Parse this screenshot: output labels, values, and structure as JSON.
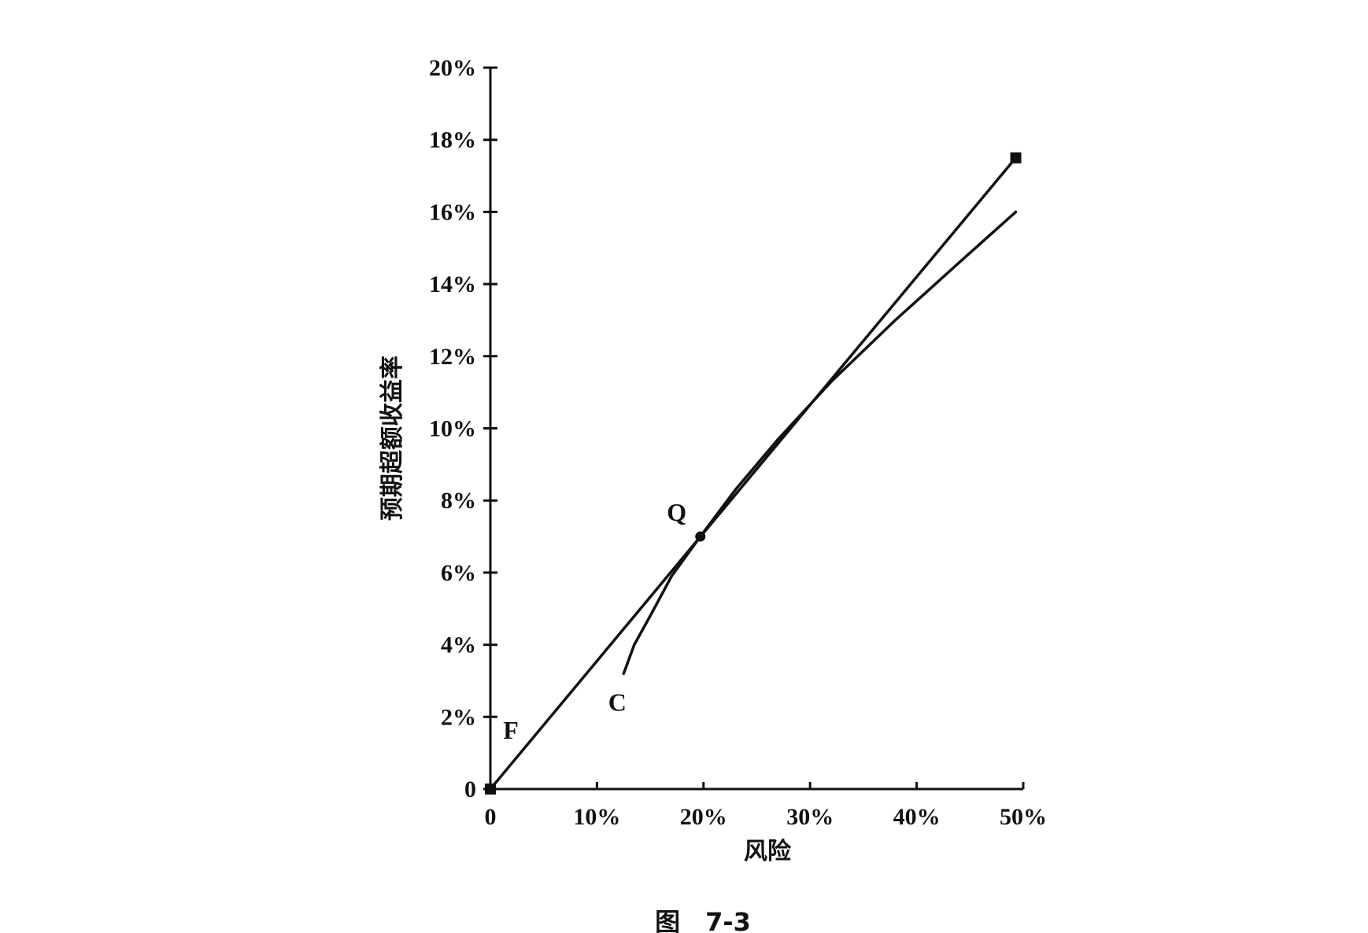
{
  "chart_data": {
    "type": "line",
    "caption": "图　7-3",
    "xlabel": "风险",
    "ylabel": "预期超额收益率",
    "xlim": [
      0,
      50
    ],
    "ylim": [
      0,
      20
    ],
    "x_ticks": [
      "0",
      "10%",
      "20%",
      "30%",
      "40%",
      "50%"
    ],
    "y_ticks": [
      "0",
      "2%",
      "4%",
      "6%",
      "8%",
      "10%",
      "12%",
      "14%",
      "16%",
      "18%",
      "20%"
    ],
    "series": [
      {
        "x": [
          0,
          49.3
        ],
        "y": [
          0,
          17.5
        ]
      },
      {
        "x": [
          12.5,
          13.5,
          15,
          17,
          19.7,
          23,
          27,
          32,
          38,
          44,
          49.3
        ],
        "y": [
          3.2,
          4.0,
          4.8,
          5.9,
          7.0,
          8.3,
          9.7,
          11.3,
          13.0,
          14.6,
          16.0
        ]
      }
    ],
    "points": [
      {
        "label": "F",
        "x": 0,
        "y": 0
      },
      {
        "label": "Q",
        "x": 19.7,
        "y": 7.0
      },
      {
        "label": "C",
        "x": 12.5,
        "y": 3.2
      }
    ],
    "end_marker": {
      "x": 49.3,
      "y": 17.5
    },
    "grid": false
  }
}
